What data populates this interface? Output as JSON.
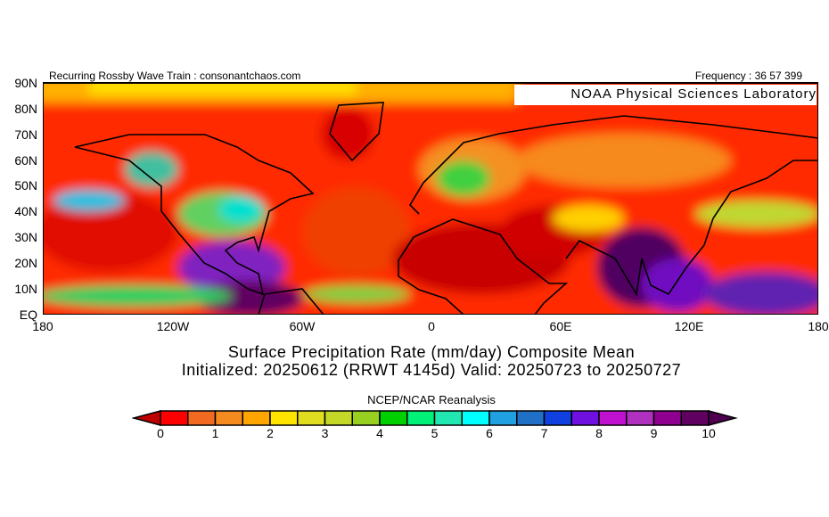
{
  "header": {
    "left": "Recurring Rossby Wave Train : consonantchaos.com",
    "right": "Frequency : 36 57 399"
  },
  "credit": "NOAA Physical Sciences Laboratory",
  "lat_labels": [
    "90N",
    "80N",
    "70N",
    "60N",
    "50N",
    "40N",
    "30N",
    "20N",
    "10N",
    "EQ"
  ],
  "lon_labels": [
    "180",
    "120W",
    "60W",
    "0",
    "60E",
    "120E",
    "180"
  ],
  "title": {
    "line1": "Surface Precipitation Rate (mm/day) Composite Mean",
    "line2": "Initialized: 20250612 (RRWT 4145d) Valid: 20250723 to 20250727"
  },
  "colorbar": {
    "source": "NCEP/NCAR Reanalysis",
    "labels": [
      "0",
      "1",
      "2",
      "3",
      "4",
      "5",
      "6",
      "7",
      "8",
      "9",
      "10"
    ],
    "under_color": "#c00000",
    "over_color": "#500050",
    "colors": [
      "#ff0000",
      "#f26a22",
      "#f58a1e",
      "#ffa500",
      "#ffe400",
      "#e0dc20",
      "#c4d828",
      "#98d020",
      "#00d000",
      "#00f078",
      "#20e8b0",
      "#00ffff",
      "#20a0e0",
      "#2070c8",
      "#1040e0",
      "#7010e0",
      "#c010d0",
      "#b030c0",
      "#900090",
      "#600060"
    ]
  }
}
